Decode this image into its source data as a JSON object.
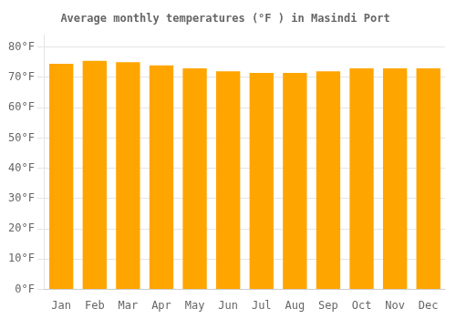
{
  "chart_data": {
    "type": "bar",
    "title": "Average monthly temperatures (°F ) in Masindi Port",
    "categories": [
      "Jan",
      "Feb",
      "Mar",
      "Apr",
      "May",
      "Jun",
      "Jul",
      "Aug",
      "Sep",
      "Oct",
      "Nov",
      "Dec"
    ],
    "values": [
      74.5,
      75.5,
      75.0,
      74.0,
      73.0,
      72.0,
      71.5,
      71.5,
      72.0,
      73.0,
      73.0,
      73.0
    ],
    "color": "#FFA500",
    "ylim": [
      0,
      84
    ],
    "yticks": [
      {
        "value": 0,
        "label": "0°F"
      },
      {
        "value": 10,
        "label": "10°F"
      },
      {
        "value": 20,
        "label": "20°F"
      },
      {
        "value": 30,
        "label": "30°F"
      },
      {
        "value": 40,
        "label": "40°F"
      },
      {
        "value": 50,
        "label": "50°F"
      },
      {
        "value": 60,
        "label": "60°F"
      },
      {
        "value": 70,
        "label": "70°F"
      },
      {
        "value": 80,
        "label": "80°F"
      }
    ],
    "grid": true
  }
}
